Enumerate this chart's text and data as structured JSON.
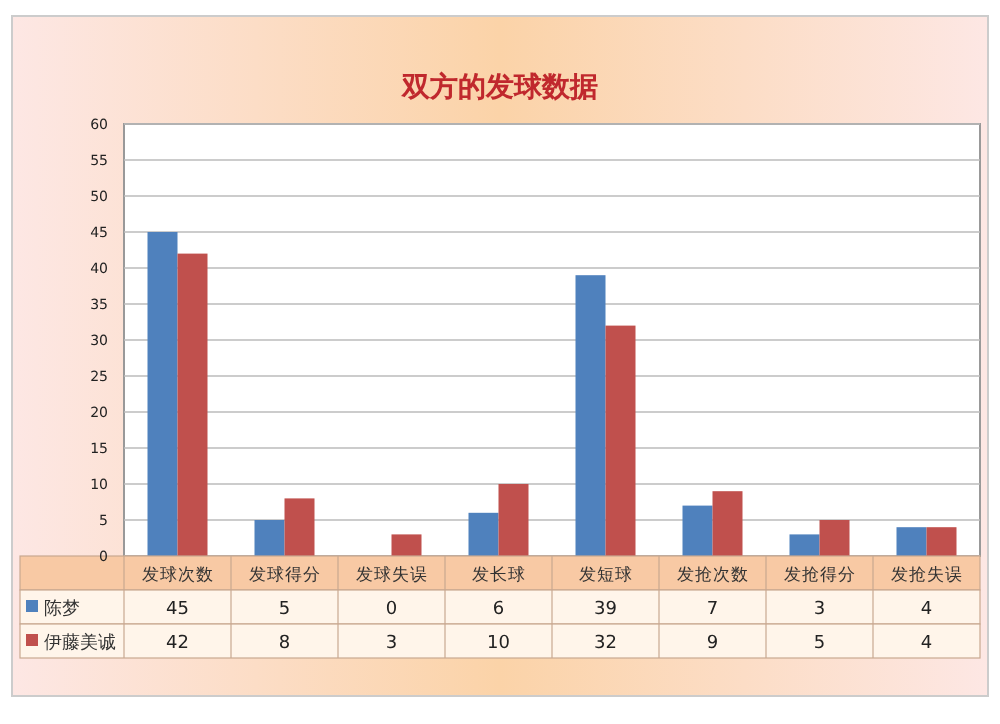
{
  "chart_data": {
    "type": "bar",
    "title": "双方的发球数据",
    "categories": [
      "发球次数",
      "发球得分",
      "发球失误",
      "发长球",
      "发短球",
      "发抢次数",
      "发抢得分",
      "发抢失误"
    ],
    "series": [
      {
        "name": "陈梦",
        "color": "#4f81bd",
        "values": [
          45,
          5,
          0,
          6,
          39,
          7,
          3,
          4
        ]
      },
      {
        "name": "伊藤美诚",
        "color": "#c0504d",
        "values": [
          42,
          8,
          3,
          10,
          32,
          9,
          5,
          4
        ]
      }
    ],
    "ylim": [
      0,
      60
    ],
    "yticks": [
      0,
      5,
      10,
      15,
      20,
      25,
      30,
      35,
      40,
      45,
      50,
      55,
      60
    ],
    "grid": "y",
    "data_labels": true,
    "legend": "bottom left"
  }
}
